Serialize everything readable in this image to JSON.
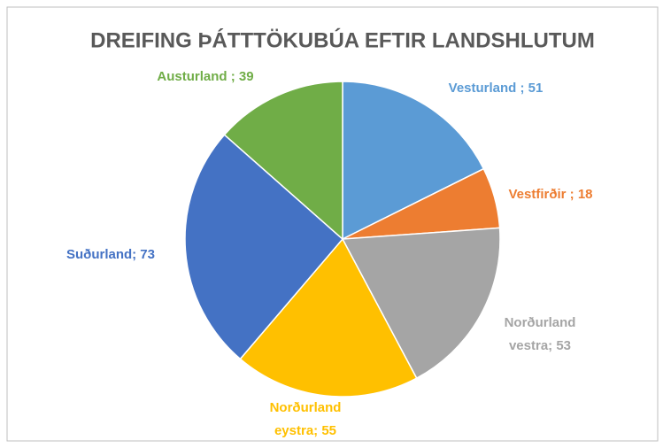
{
  "chart_data": {
    "type": "pie",
    "title": "DREIFING ÞÁTTTÖKUBÚA EFTIR LANDSHLUTUM",
    "values": [
      51,
      18,
      53,
      55,
      73,
      39
    ],
    "value_labels": [
      "Vesturland ; 51",
      "Vestfirðir ; 18",
      "Norðurland vestra; 53",
      "Norðurland eystra; 55",
      "Suðurland; 73",
      "Austurland ; 39"
    ],
    "colors": [
      "#5b9bd5",
      "#ed7d31",
      "#a5a5a5",
      "#ffc000",
      "#4472c4",
      "#70ad47"
    ]
  }
}
